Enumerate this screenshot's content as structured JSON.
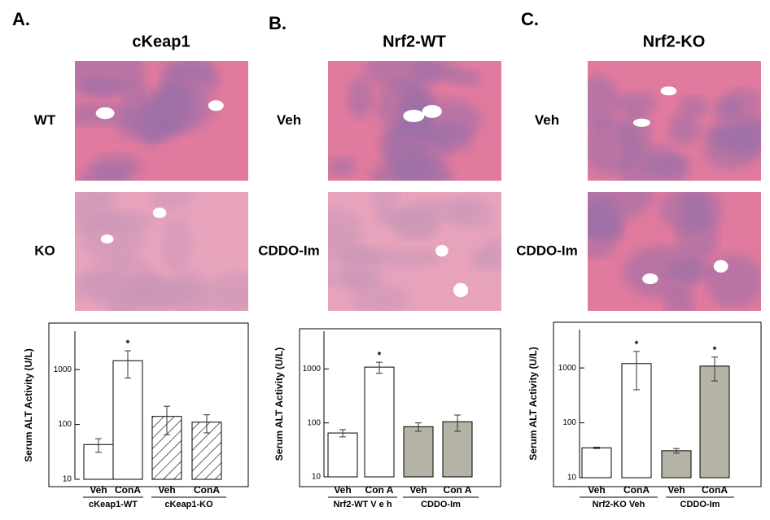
{
  "chart_data": [
    {
      "type": "bar",
      "panel": "A.",
      "title": "cKeap1",
      "row_labels": [
        "WT",
        "KO"
      ],
      "ylabel": "Serum ALT Activity (U/L)",
      "log_scale": true,
      "ylim": [
        10,
        5000
      ],
      "yticks": [
        10,
        100,
        1000
      ],
      "categories": [
        "Veh",
        "ConA",
        "Veh",
        "ConA"
      ],
      "groups": [
        "cKeap1-WT",
        "cKeap1-KO"
      ],
      "values": [
        43,
        1450,
        140,
        110
      ],
      "errors": [
        12,
        750,
        75,
        40
      ],
      "bar_fills": [
        "#ffffff",
        "#ffffff",
        "hatch",
        "hatch"
      ],
      "annotations": [
        null,
        "*",
        null,
        null
      ]
    },
    {
      "type": "bar",
      "panel": "B.",
      "title": "Nrf2-WT",
      "row_labels": [
        "Veh",
        "CDDO-Im"
      ],
      "ylabel": "Serum ALT Activity (U/L)",
      "log_scale": true,
      "ylim": [
        10,
        5000
      ],
      "yticks": [
        10,
        100,
        1000
      ],
      "categories": [
        "Veh",
        "Con A",
        "Veh",
        "Con A"
      ],
      "groups": [
        "Nrf2-WT V e h",
        "CDDO-Im"
      ],
      "values": [
        65,
        1080,
        85,
        105
      ],
      "errors": [
        10,
        250,
        15,
        35
      ],
      "bar_fills": [
        "#ffffff",
        "#ffffff",
        "#b4b3a5",
        "#b4b3a5"
      ],
      "annotations": [
        null,
        "*",
        null,
        null
      ]
    },
    {
      "type": "bar",
      "panel": "C.",
      "title": "Nrf2-KO",
      "row_labels": [
        "Veh",
        "CDDO-Im"
      ],
      "ylabel": "Serum ALT Activity (U/L)",
      "log_scale": true,
      "ylim": [
        10,
        5000
      ],
      "yticks": [
        10,
        100,
        1000
      ],
      "categories": [
        "Veh",
        "ConA",
        "Veh",
        "ConA"
      ],
      "groups": [
        "Nrf2-KO Veh",
        "CDDO-Im"
      ],
      "values": [
        35,
        1200,
        31,
        1080
      ],
      "errors": [
        1,
        800,
        3,
        500
      ],
      "bar_fills": [
        "#ffffff",
        "#ffffff",
        "#b4b3a5",
        "#b4b3a5"
      ],
      "annotations": [
        null,
        "*",
        null,
        "*"
      ]
    }
  ]
}
